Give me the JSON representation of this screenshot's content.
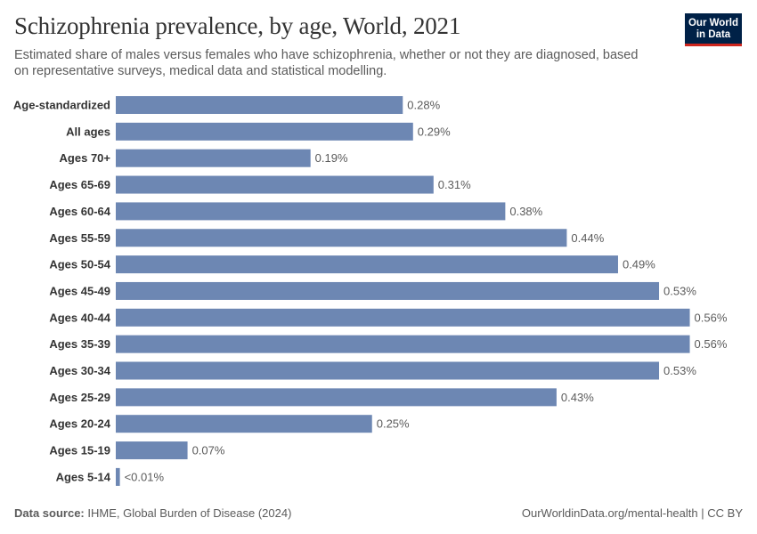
{
  "header": {
    "title": "Schizophrenia prevalence, by age, World, 2021",
    "subtitle": "Estimated share of males versus females who have schizophrenia, whether or not they are diagnosed, based on representative surveys, medical data and statistical modelling."
  },
  "logo": {
    "line1": "Our World",
    "line2": "in Data"
  },
  "footer": {
    "source_label": "Data source:",
    "source_text": "IHME, Global Burden of Disease (2024)",
    "url": "OurWorldinData.org/mental-health",
    "separator": "|",
    "license": "CC BY"
  },
  "chart_data": {
    "type": "bar",
    "orientation": "horizontal",
    "categories": [
      "Age-standardized",
      "All ages",
      "Ages 70+",
      "Ages 65-69",
      "Ages 60-64",
      "Ages 55-59",
      "Ages 50-54",
      "Ages 45-49",
      "Ages 40-44",
      "Ages 35-39",
      "Ages 30-34",
      "Ages 25-29",
      "Ages 20-24",
      "Ages 15-19",
      "Ages 5-14"
    ],
    "values": [
      0.28,
      0.29,
      0.19,
      0.31,
      0.38,
      0.44,
      0.49,
      0.53,
      0.56,
      0.56,
      0.53,
      0.43,
      0.25,
      0.07,
      0.004
    ],
    "labels": [
      "0.28%",
      "0.29%",
      "0.19%",
      "0.31%",
      "0.38%",
      "0.44%",
      "0.49%",
      "0.53%",
      "0.56%",
      "0.56%",
      "0.53%",
      "0.43%",
      "0.25%",
      "0.07%",
      "<0.01%"
    ],
    "unit": "%",
    "xlim": [
      0,
      0.563
    ],
    "grid": false,
    "colors": {
      "bar": "#6d87b3",
      "label": "#5b5b5b",
      "category": "#333333"
    }
  }
}
